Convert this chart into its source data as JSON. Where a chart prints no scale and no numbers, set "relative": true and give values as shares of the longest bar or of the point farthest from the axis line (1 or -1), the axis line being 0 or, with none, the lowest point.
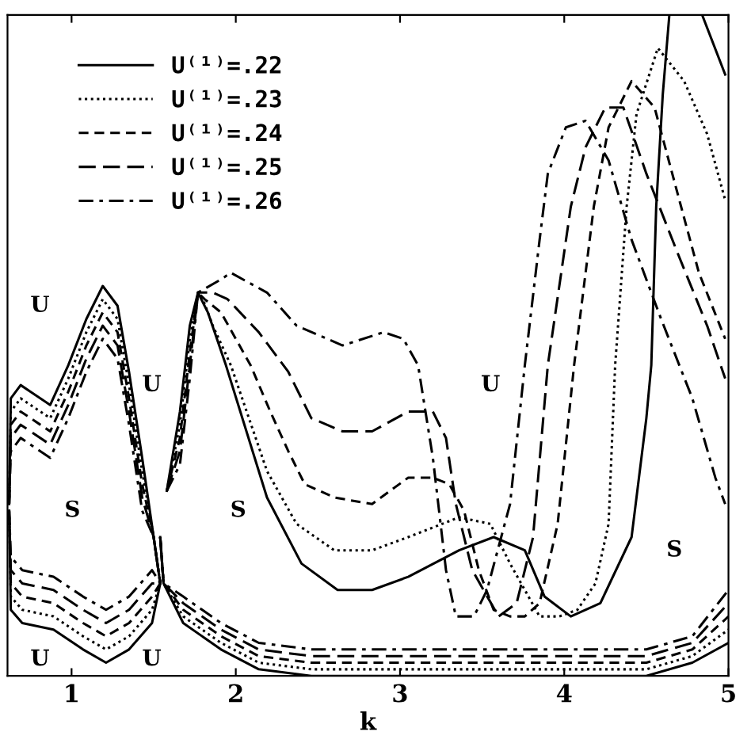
{
  "chart_data": {
    "type": "line",
    "relative": true,
    "xlabel": "k",
    "xlim": [
      0.61,
      5.0
    ],
    "xticks": [
      1,
      2,
      3,
      4,
      5
    ],
    "tick_labels": "x",
    "grid": false,
    "legend": "top left",
    "marker": "none",
    "series": [
      {
        "name": "U⁽¹⁾=.22",
        "color": "#000000",
        "line_style": "solid",
        "x": [
          0.62,
          0.63,
          0.69,
          0.75,
          0.87,
          0.98,
          1.09,
          1.19,
          1.28,
          1.35,
          1.43,
          1.5,
          1.54,
          null,
          0.62,
          0.63,
          0.7,
          0.89,
          1.07,
          1.21,
          1.35,
          1.49,
          1.54,
          null,
          1.54,
          1.56,
          1.68,
          1.91,
          2.14,
          2.46,
          3.39,
          4.5,
          4.78,
          5.0,
          null,
          1.58,
          1.66,
          1.72,
          1.77,
          1.83,
          1.94,
          2.19,
          2.4,
          2.62,
          2.83,
          3.05,
          3.36,
          3.57,
          3.76,
          3.88,
          4.04,
          4.22,
          4.41,
          4.5,
          4.53,
          4.56,
          4.6,
          4.64,
          null,
          4.84,
          4.98
        ],
        "values": [
          0.26,
          0.42,
          0.44,
          0.43,
          0.41,
          0.47,
          0.54,
          0.59,
          0.56,
          0.46,
          0.33,
          0.21,
          0.14,
          null,
          0.25,
          0.1,
          0.08,
          0.07,
          0.04,
          0.02,
          0.04,
          0.08,
          0.14,
          null,
          0.21,
          0.14,
          0.08,
          0.04,
          0.01,
          0.0,
          0.0,
          0.0,
          0.02,
          0.05,
          null,
          0.28,
          0.4,
          0.53,
          0.58,
          0.55,
          0.47,
          0.27,
          0.17,
          0.13,
          0.13,
          0.15,
          0.19,
          0.21,
          0.19,
          0.12,
          0.09,
          0.11,
          0.21,
          0.39,
          0.47,
          0.71,
          0.88,
          1.0,
          null,
          1.0,
          0.91
        ]
      },
      {
        "name": "U⁽¹⁾=.23",
        "color": "#000000",
        "line_style": "dotted",
        "x": [
          0.62,
          0.63,
          0.69,
          0.75,
          0.87,
          0.98,
          1.09,
          1.19,
          1.28,
          1.35,
          1.43,
          1.5,
          1.54,
          null,
          0.62,
          0.63,
          0.7,
          0.89,
          1.07,
          1.21,
          1.35,
          1.49,
          1.54,
          null,
          1.54,
          1.56,
          1.68,
          1.91,
          2.14,
          2.46,
          3.39,
          4.5,
          4.78,
          5.0,
          null,
          1.58,
          1.66,
          1.72,
          1.77,
          1.8,
          1.86,
          1.97,
          2.19,
          2.37,
          2.6,
          2.83,
          3.05,
          3.36,
          3.55,
          3.67,
          3.76,
          3.85,
          3.97,
          4.08,
          4.19,
          4.27,
          4.31,
          4.38,
          4.44,
          4.57,
          4.73,
          4.87,
          4.98
        ],
        "values": [
          0.26,
          0.4,
          0.42,
          0.41,
          0.39,
          0.45,
          0.52,
          0.57,
          0.54,
          0.44,
          0.31,
          0.21,
          0.14,
          null,
          0.25,
          0.12,
          0.1,
          0.09,
          0.06,
          0.04,
          0.06,
          0.1,
          0.14,
          null,
          0.21,
          0.14,
          0.09,
          0.05,
          0.02,
          0.01,
          0.01,
          0.01,
          0.03,
          0.07,
          null,
          0.28,
          0.38,
          0.51,
          0.58,
          0.57,
          0.53,
          0.47,
          0.31,
          0.23,
          0.19,
          0.19,
          0.21,
          0.24,
          0.23,
          0.17,
          0.13,
          0.09,
          0.09,
          0.1,
          0.14,
          0.23,
          0.47,
          0.71,
          0.85,
          0.95,
          0.9,
          0.82,
          0.72
        ]
      },
      {
        "name": "U⁽¹⁾=.24",
        "color": "#000000",
        "line_style": "dashed",
        "x": [
          0.62,
          0.63,
          0.69,
          0.75,
          0.87,
          0.98,
          1.09,
          1.19,
          1.28,
          1.35,
          1.43,
          1.5,
          1.54,
          null,
          0.62,
          0.63,
          0.7,
          0.89,
          1.07,
          1.21,
          1.35,
          1.49,
          1.54,
          null,
          1.54,
          1.56,
          1.68,
          1.91,
          2.14,
          2.46,
          3.39,
          4.5,
          4.78,
          5.0,
          null,
          1.58,
          1.66,
          1.72,
          1.77,
          1.81,
          1.91,
          2.09,
          2.21,
          2.32,
          2.42,
          2.6,
          2.83,
          3.05,
          3.2,
          3.3,
          3.39,
          3.48,
          3.57,
          3.67,
          3.76,
          3.85,
          3.96,
          4.06,
          4.18,
          4.27,
          4.41,
          4.55,
          4.69,
          4.82,
          4.98
        ],
        "values": [
          0.26,
          0.38,
          0.4,
          0.39,
          0.37,
          0.43,
          0.5,
          0.55,
          0.52,
          0.42,
          0.29,
          0.21,
          0.14,
          null,
          0.25,
          0.14,
          0.12,
          0.11,
          0.08,
          0.06,
          0.08,
          0.12,
          0.14,
          null,
          0.21,
          0.14,
          0.1,
          0.06,
          0.03,
          0.02,
          0.02,
          0.02,
          0.04,
          0.09,
          null,
          0.28,
          0.36,
          0.49,
          0.58,
          0.57,
          0.55,
          0.47,
          0.4,
          0.34,
          0.29,
          0.27,
          0.26,
          0.3,
          0.3,
          0.29,
          0.25,
          0.16,
          0.1,
          0.09,
          0.09,
          0.11,
          0.23,
          0.47,
          0.71,
          0.83,
          0.9,
          0.86,
          0.73,
          0.61,
          0.51
        ]
      },
      {
        "name": "U⁽¹⁾=.25",
        "color": "#000000",
        "line_style": "long dashed",
        "x": [
          0.62,
          0.63,
          0.69,
          0.75,
          0.87,
          0.98,
          1.09,
          1.19,
          1.28,
          1.35,
          1.43,
          1.5,
          1.54,
          null,
          0.62,
          0.63,
          0.7,
          0.89,
          1.07,
          1.21,
          1.35,
          1.49,
          1.54,
          null,
          1.54,
          1.56,
          1.68,
          1.91,
          2.14,
          2.46,
          3.39,
          4.5,
          4.78,
          5.0,
          null,
          1.58,
          1.66,
          1.72,
          1.77,
          1.86,
          1.95,
          2.14,
          2.32,
          2.46,
          2.65,
          2.83,
          3.05,
          3.2,
          3.28,
          3.34,
          3.44,
          3.6,
          3.71,
          3.81,
          3.9,
          4.04,
          4.13,
          4.25,
          4.36,
          4.5,
          4.69,
          4.87,
          4.98
        ],
        "values": [
          0.26,
          0.36,
          0.38,
          0.37,
          0.35,
          0.41,
          0.48,
          0.53,
          0.5,
          0.4,
          0.27,
          0.21,
          0.14,
          null,
          0.25,
          0.16,
          0.14,
          0.13,
          0.1,
          0.08,
          0.1,
          0.14,
          0.14,
          null,
          0.21,
          0.14,
          0.11,
          0.07,
          0.04,
          0.03,
          0.03,
          0.03,
          0.05,
          0.11,
          null,
          0.28,
          0.34,
          0.47,
          0.58,
          0.58,
          0.57,
          0.52,
          0.46,
          0.39,
          0.37,
          0.37,
          0.4,
          0.4,
          0.36,
          0.26,
          0.16,
          0.09,
          0.11,
          0.21,
          0.47,
          0.71,
          0.8,
          0.86,
          0.86,
          0.76,
          0.64,
          0.53,
          0.45
        ]
      },
      {
        "name": "U⁽¹⁾=.26",
        "color": "#000000",
        "line_style": "dash-dot",
        "x": [
          0.62,
          0.63,
          0.69,
          0.75,
          0.87,
          0.98,
          1.09,
          1.19,
          1.28,
          1.35,
          1.43,
          1.5,
          1.54,
          null,
          0.62,
          0.63,
          0.7,
          0.89,
          1.07,
          1.21,
          1.35,
          1.49,
          1.54,
          null,
          1.54,
          1.56,
          1.68,
          1.91,
          2.14,
          2.46,
          3.39,
          4.5,
          4.78,
          5.0,
          null,
          1.58,
          1.66,
          1.72,
          1.77,
          1.91,
          1.97,
          2.19,
          2.37,
          2.65,
          2.9,
          3.02,
          3.11,
          3.2,
          3.28,
          3.34,
          3.45,
          3.53,
          3.67,
          3.76,
          3.85,
          3.9,
          4.01,
          4.13,
          4.27,
          4.41,
          4.59,
          4.78,
          4.92,
          4.98
        ],
        "values": [
          0.26,
          0.34,
          0.36,
          0.35,
          0.33,
          0.39,
          0.46,
          0.51,
          0.48,
          0.38,
          0.25,
          0.21,
          0.14,
          null,
          0.25,
          0.18,
          0.16,
          0.15,
          0.12,
          0.1,
          0.12,
          0.16,
          0.14,
          null,
          0.21,
          0.14,
          0.12,
          0.08,
          0.05,
          0.04,
          0.04,
          0.04,
          0.06,
          0.13,
          null,
          0.28,
          0.32,
          0.45,
          0.58,
          0.6,
          0.61,
          0.58,
          0.53,
          0.5,
          0.52,
          0.51,
          0.47,
          0.33,
          0.16,
          0.09,
          0.09,
          0.13,
          0.26,
          0.47,
          0.66,
          0.76,
          0.83,
          0.84,
          0.78,
          0.66,
          0.54,
          0.42,
          0.3,
          0.26
        ]
      }
    ],
    "annotations": [
      "U",
      "U",
      "S",
      "S",
      "U",
      "U",
      "U",
      "S"
    ]
  }
}
